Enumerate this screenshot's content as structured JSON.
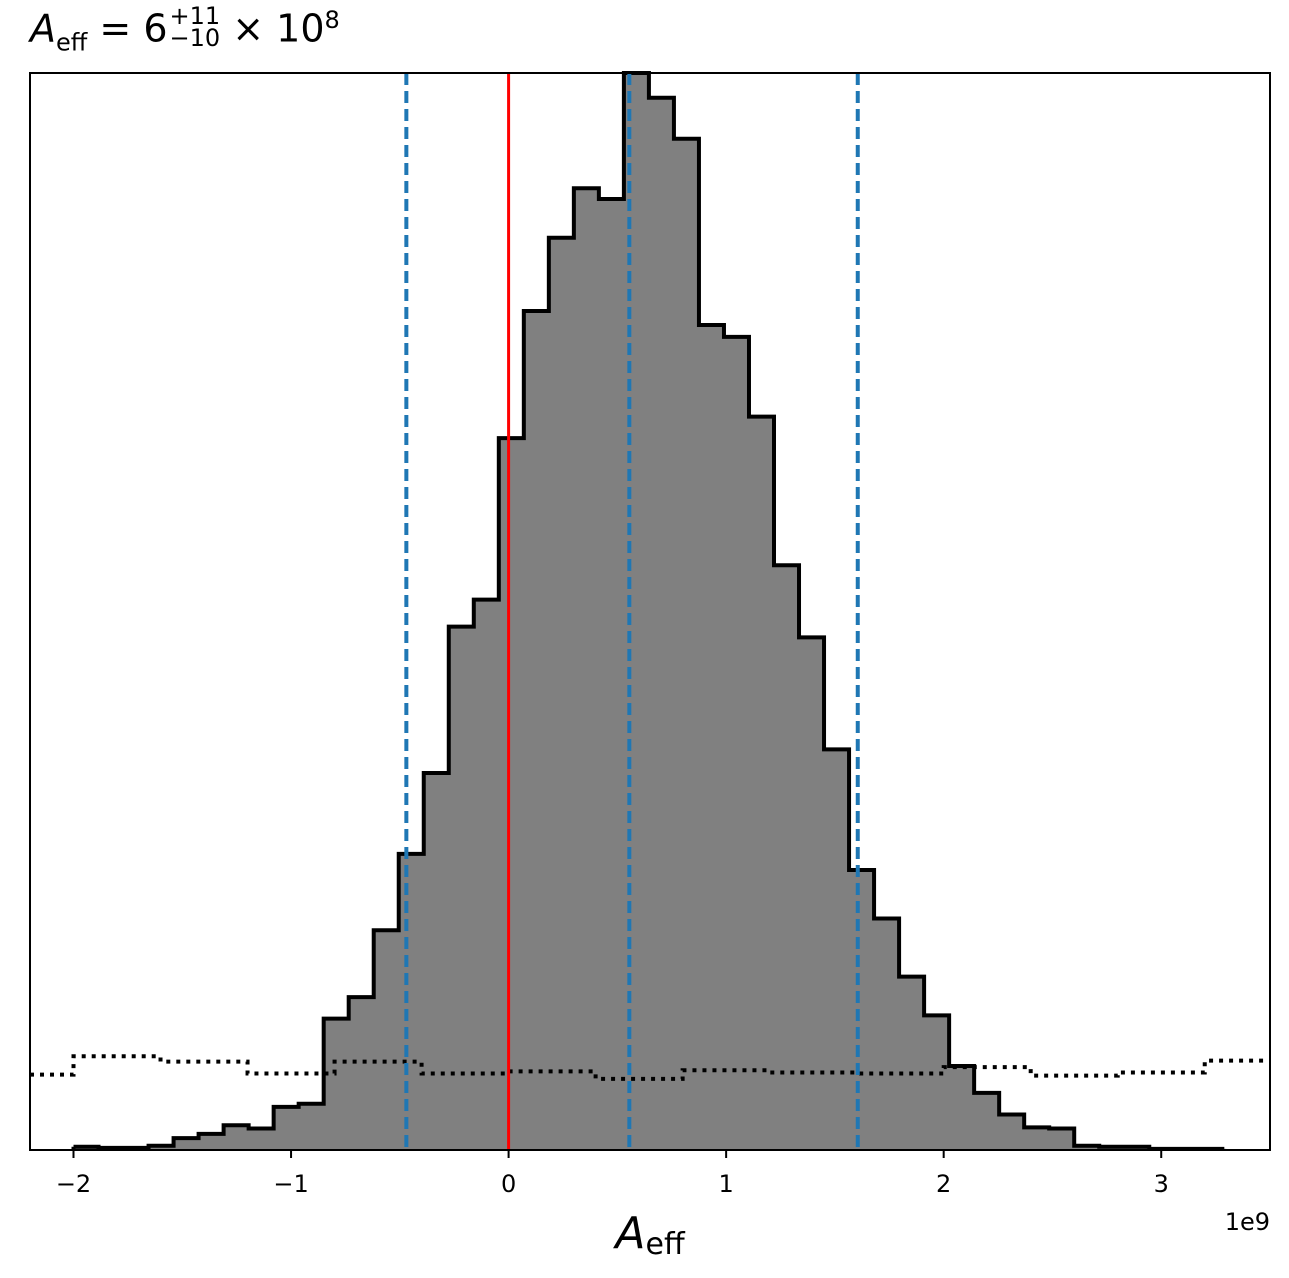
{
  "title": {
    "symbol": "A",
    "subscript": "eff",
    "equals": "= 6",
    "upper": "+11",
    "lower": "−10",
    "times": "× 10",
    "exponent": "8"
  },
  "colors": {
    "histogram_fill": "#808080",
    "histogram_edge": "#000000",
    "truth_line": "#ff0000",
    "quantile_lines": "#1f77b4",
    "prior": "#000000"
  },
  "chart_data": {
    "type": "bar",
    "xlabel_symbol": "A",
    "xlabel_subscript": "eff",
    "offset_label": "1e9",
    "xlim": [
      -2.2,
      3.5
    ],
    "ylim": [
      0,
      1.0
    ],
    "xticks": [
      -2,
      -1,
      0,
      1,
      2,
      3
    ],
    "xtick_labels": [
      "−2",
      "−1",
      "0",
      "1",
      "2",
      "3"
    ],
    "grid": false,
    "y_ticks_visible": false,
    "posterior_histogram": {
      "bin_edges": [
        -2.0,
        -1.885,
        -1.77,
        -1.655,
        -1.54,
        -1.425,
        -1.31,
        -1.195,
        -1.08,
        -0.965,
        -0.85,
        -0.735,
        -0.62,
        -0.505,
        -0.39,
        -0.275,
        -0.16,
        -0.045,
        0.07,
        0.185,
        0.3,
        0.415,
        0.53,
        0.645,
        0.76,
        0.875,
        0.99,
        1.105,
        1.22,
        1.335,
        1.45,
        1.565,
        1.68,
        1.795,
        1.91,
        2.025,
        2.14,
        2.255,
        2.37,
        2.485,
        2.6,
        2.715,
        2.83,
        2.945,
        3.06,
        3.175,
        3.29
      ],
      "values": [
        0.003,
        0.002,
        0.002,
        0.004,
        0.011,
        0.015,
        0.023,
        0.02,
        0.04,
        0.043,
        0.122,
        0.142,
        0.204,
        0.275,
        0.35,
        0.486,
        0.511,
        0.661,
        0.779,
        0.847,
        0.893,
        0.883,
        1.0,
        0.977,
        0.939,
        0.766,
        0.755,
        0.681,
        0.543,
        0.476,
        0.372,
        0.26,
        0.215,
        0.161,
        0.125,
        0.078,
        0.053,
        0.033,
        0.021,
        0.02,
        0.004,
        0.003,
        0.003,
        0.001,
        0.001,
        0.001
      ]
    },
    "prior_histogram": {
      "bin_edges": [
        -2.2,
        -2.0,
        -1.6,
        -1.2,
        -0.8,
        -0.4,
        0.0,
        0.4,
        0.8,
        1.2,
        1.6,
        2.0,
        2.4,
        2.8,
        3.2,
        3.5
      ],
      "values": [
        0.07,
        0.087,
        0.082,
        0.071,
        0.082,
        0.071,
        0.073,
        0.066,
        0.074,
        0.072,
        0.071,
        0.077,
        0.069,
        0.072,
        0.083
      ]
    },
    "truth_value": 0.0,
    "quantiles": [
      -0.47,
      0.555,
      1.605
    ]
  }
}
